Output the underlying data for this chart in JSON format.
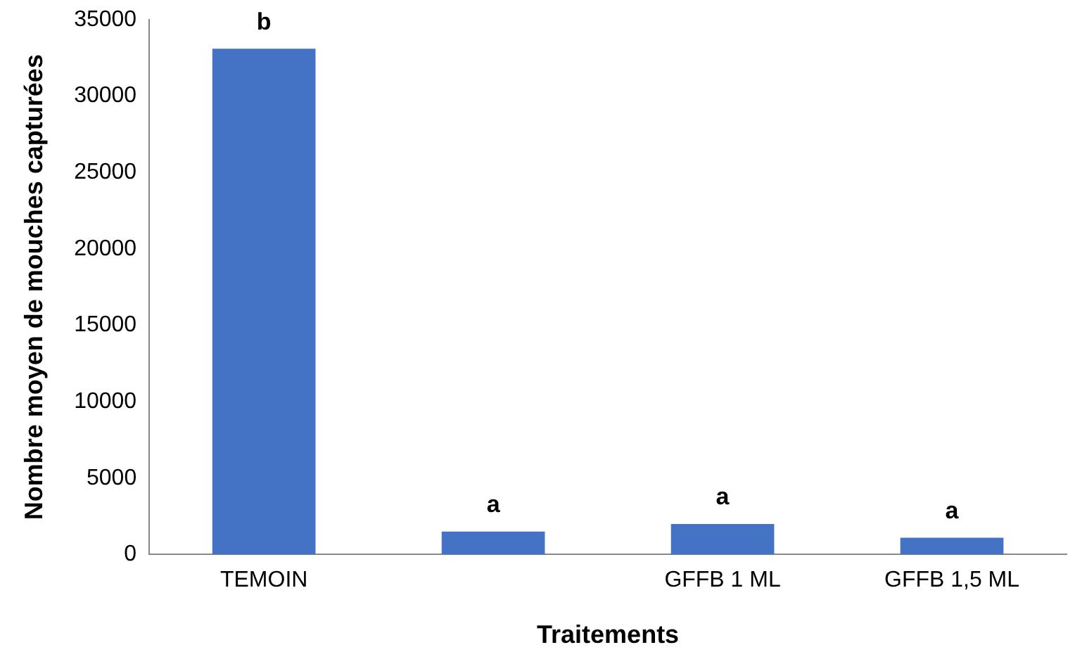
{
  "chart_data": {
    "type": "bar",
    "xlabel": "Traitements",
    "ylabel": "Nombre moyen de mouches capturées",
    "categories": [
      "TEMOIN",
      null,
      "GFFB 1 ML",
      "GFFB 1,5 ML"
    ],
    "values": [
      33100,
      1500,
      2000,
      1100
    ],
    "color": "#4472c4",
    "ylim": [
      0,
      35000
    ],
    "yticks": [
      0,
      5000,
      10000,
      15000,
      20000,
      25000,
      30000,
      35000
    ],
    "grid": false,
    "legend": false,
    "annotations": [
      {
        "text": "b",
        "x": "TEMOIN",
        "y": 33100
      },
      {
        "text": "a",
        "y": 1500
      },
      {
        "text": "a",
        "x": "GFFB 1 ML",
        "y": 2000
      },
      {
        "text": "a",
        "x": "GFFB 1,5 ML",
        "y": 1100
      }
    ]
  }
}
